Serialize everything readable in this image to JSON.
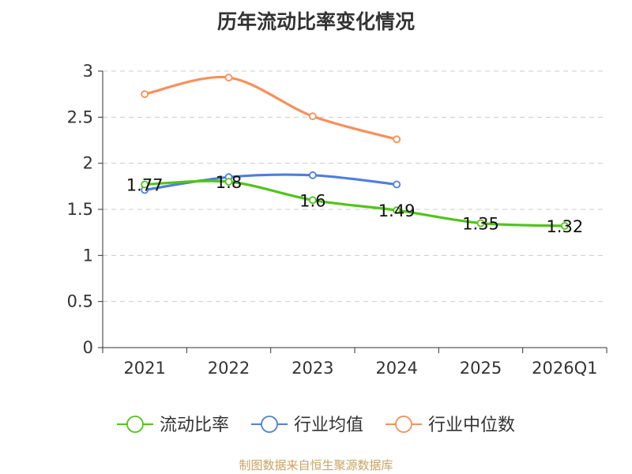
{
  "chart_data": {
    "type": "line",
    "title": "历年流动比率变化情况",
    "categories": [
      "2021",
      "2022",
      "2023",
      "2024",
      "2025",
      "2026Q1"
    ],
    "ylim": [
      0,
      3
    ],
    "yticks": [
      0,
      0.5,
      1,
      1.5,
      2,
      2.5,
      3
    ],
    "ytick_labels": [
      "0",
      "0.5",
      "1",
      "1.5",
      "2",
      "2.5",
      "3"
    ],
    "grid": true,
    "legend_position": "bottom",
    "series": [
      {
        "name": "流动比率",
        "color": "#52c41a",
        "values": [
          1.77,
          1.8,
          1.6,
          1.49,
          1.35,
          1.32
        ],
        "data_labels": [
          "1.77",
          "1.8",
          "1.6",
          "1.49",
          "1.35",
          "1.32"
        ]
      },
      {
        "name": "行业均值",
        "color": "#4e7fde",
        "values": [
          1.71,
          1.85,
          1.87,
          1.77,
          null,
          null
        ]
      },
      {
        "name": "行业中位数",
        "color": "#f7905a",
        "values": [
          2.75,
          2.93,
          2.51,
          2.26,
          null,
          null
        ]
      }
    ]
  },
  "source_note": "制图数据来自恒生聚源数据库"
}
